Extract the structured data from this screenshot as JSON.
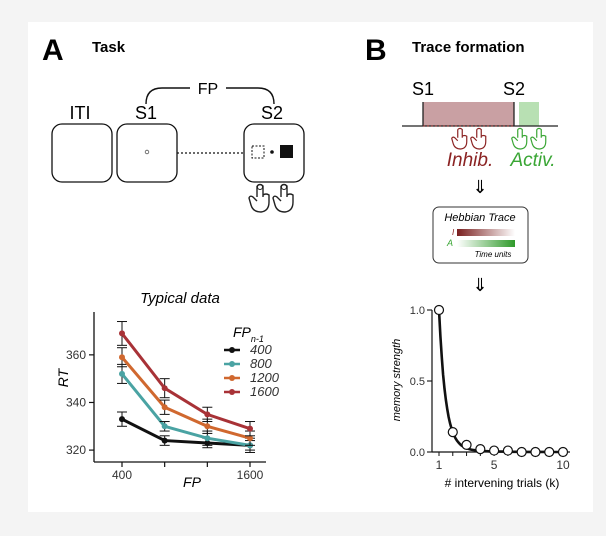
{
  "panel_a": {
    "letter": "A",
    "title": "Task",
    "fp_label": "FP",
    "iti_label": "ITI",
    "s1_label": "S1",
    "s2_label": "S2"
  },
  "panel_b": {
    "letter": "B",
    "title": "Trace formation",
    "s1_label": "S1",
    "s2_label": "S2",
    "inhib_label": "Inhib.",
    "activ_label": "Activ.",
    "arrow": "⇓",
    "hebbian_title": "Hebbian Trace",
    "i_label": "I",
    "a_label": "A",
    "time_units": "Time units"
  },
  "colors": {
    "inhib": "#8b2323",
    "activ": "#3aa635",
    "inhib_fill": "#c9a0a3",
    "activ_fill": "#b8e0b3"
  },
  "chart_data": [
    {
      "type": "line",
      "title": "Typical data",
      "xlabel": "FP",
      "ylabel": "RT",
      "x": [
        400,
        800,
        1200,
        1600
      ],
      "xticks": [
        "400",
        "1600"
      ],
      "yticks": [
        320,
        340,
        360
      ],
      "ylim": [
        315,
        378
      ],
      "legend_title": "FP",
      "legend_subscript": "n-1",
      "legend_position": "top-right",
      "series": [
        {
          "name": "400",
          "color": "#111111",
          "values": [
            333,
            324,
            323,
            322
          ],
          "err": [
            3,
            2,
            2,
            2
          ]
        },
        {
          "name": "800",
          "color": "#4aa3a3",
          "values": [
            352,
            330,
            325,
            322
          ],
          "err": [
            4,
            2,
            3,
            3
          ]
        },
        {
          "name": "1200",
          "color": "#d0682f",
          "values": [
            359,
            338,
            330,
            325
          ],
          "err": [
            4,
            3,
            3,
            3
          ]
        },
        {
          "name": "1600",
          "color": "#a83237",
          "values": [
            369,
            346,
            335,
            329
          ],
          "err": [
            5,
            4,
            3,
            3
          ]
        }
      ]
    },
    {
      "type": "line",
      "title": "",
      "xlabel": "# intervening trials (k)",
      "ylabel": "memory strength",
      "x": [
        1,
        2,
        3,
        4,
        5,
        6,
        7,
        8,
        9,
        10
      ],
      "xticks": [
        1,
        5,
        10
      ],
      "yticks": [
        "0.0",
        "0.5",
        "1.0"
      ],
      "ylim": [
        0,
        1
      ],
      "values": [
        1.0,
        0.14,
        0.05,
        0.02,
        0.01,
        0.01,
        0.0,
        0.0,
        0.0,
        0.0
      ]
    }
  ]
}
